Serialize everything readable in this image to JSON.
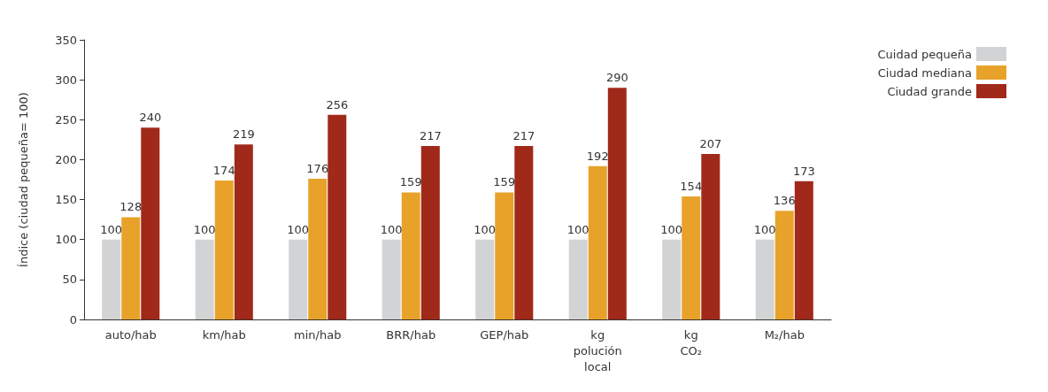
{
  "chart_data": {
    "type": "bar",
    "ylabel": "Índice (ciudad pequeña= 100)",
    "categories": [
      "auto/hab",
      "km/hab",
      "min/hab",
      "BRR/hab",
      "GEP/hab",
      "kg polución local",
      "kg CO₂",
      "M₂/hab"
    ],
    "series": [
      {
        "name": "Cuidad pequeña",
        "color": "#d1d3d4",
        "values": [
          100,
          100,
          100,
          100,
          100,
          100,
          100,
          100
        ]
      },
      {
        "name": "Ciudad mediana",
        "color": "#e8a22a",
        "values": [
          128,
          174,
          176,
          159,
          159,
          192,
          154,
          136
        ]
      },
      {
        "name": "Ciudad grande",
        "color": "#a0291a",
        "values": [
          240,
          219,
          256,
          217,
          217,
          290,
          207,
          173
        ]
      }
    ],
    "ylim": [
      0,
      350
    ],
    "yticks": [
      0,
      50,
      100,
      150,
      200,
      250,
      300,
      350
    ],
    "grid": false,
    "legend": "top right",
    "data_labels": true
  }
}
